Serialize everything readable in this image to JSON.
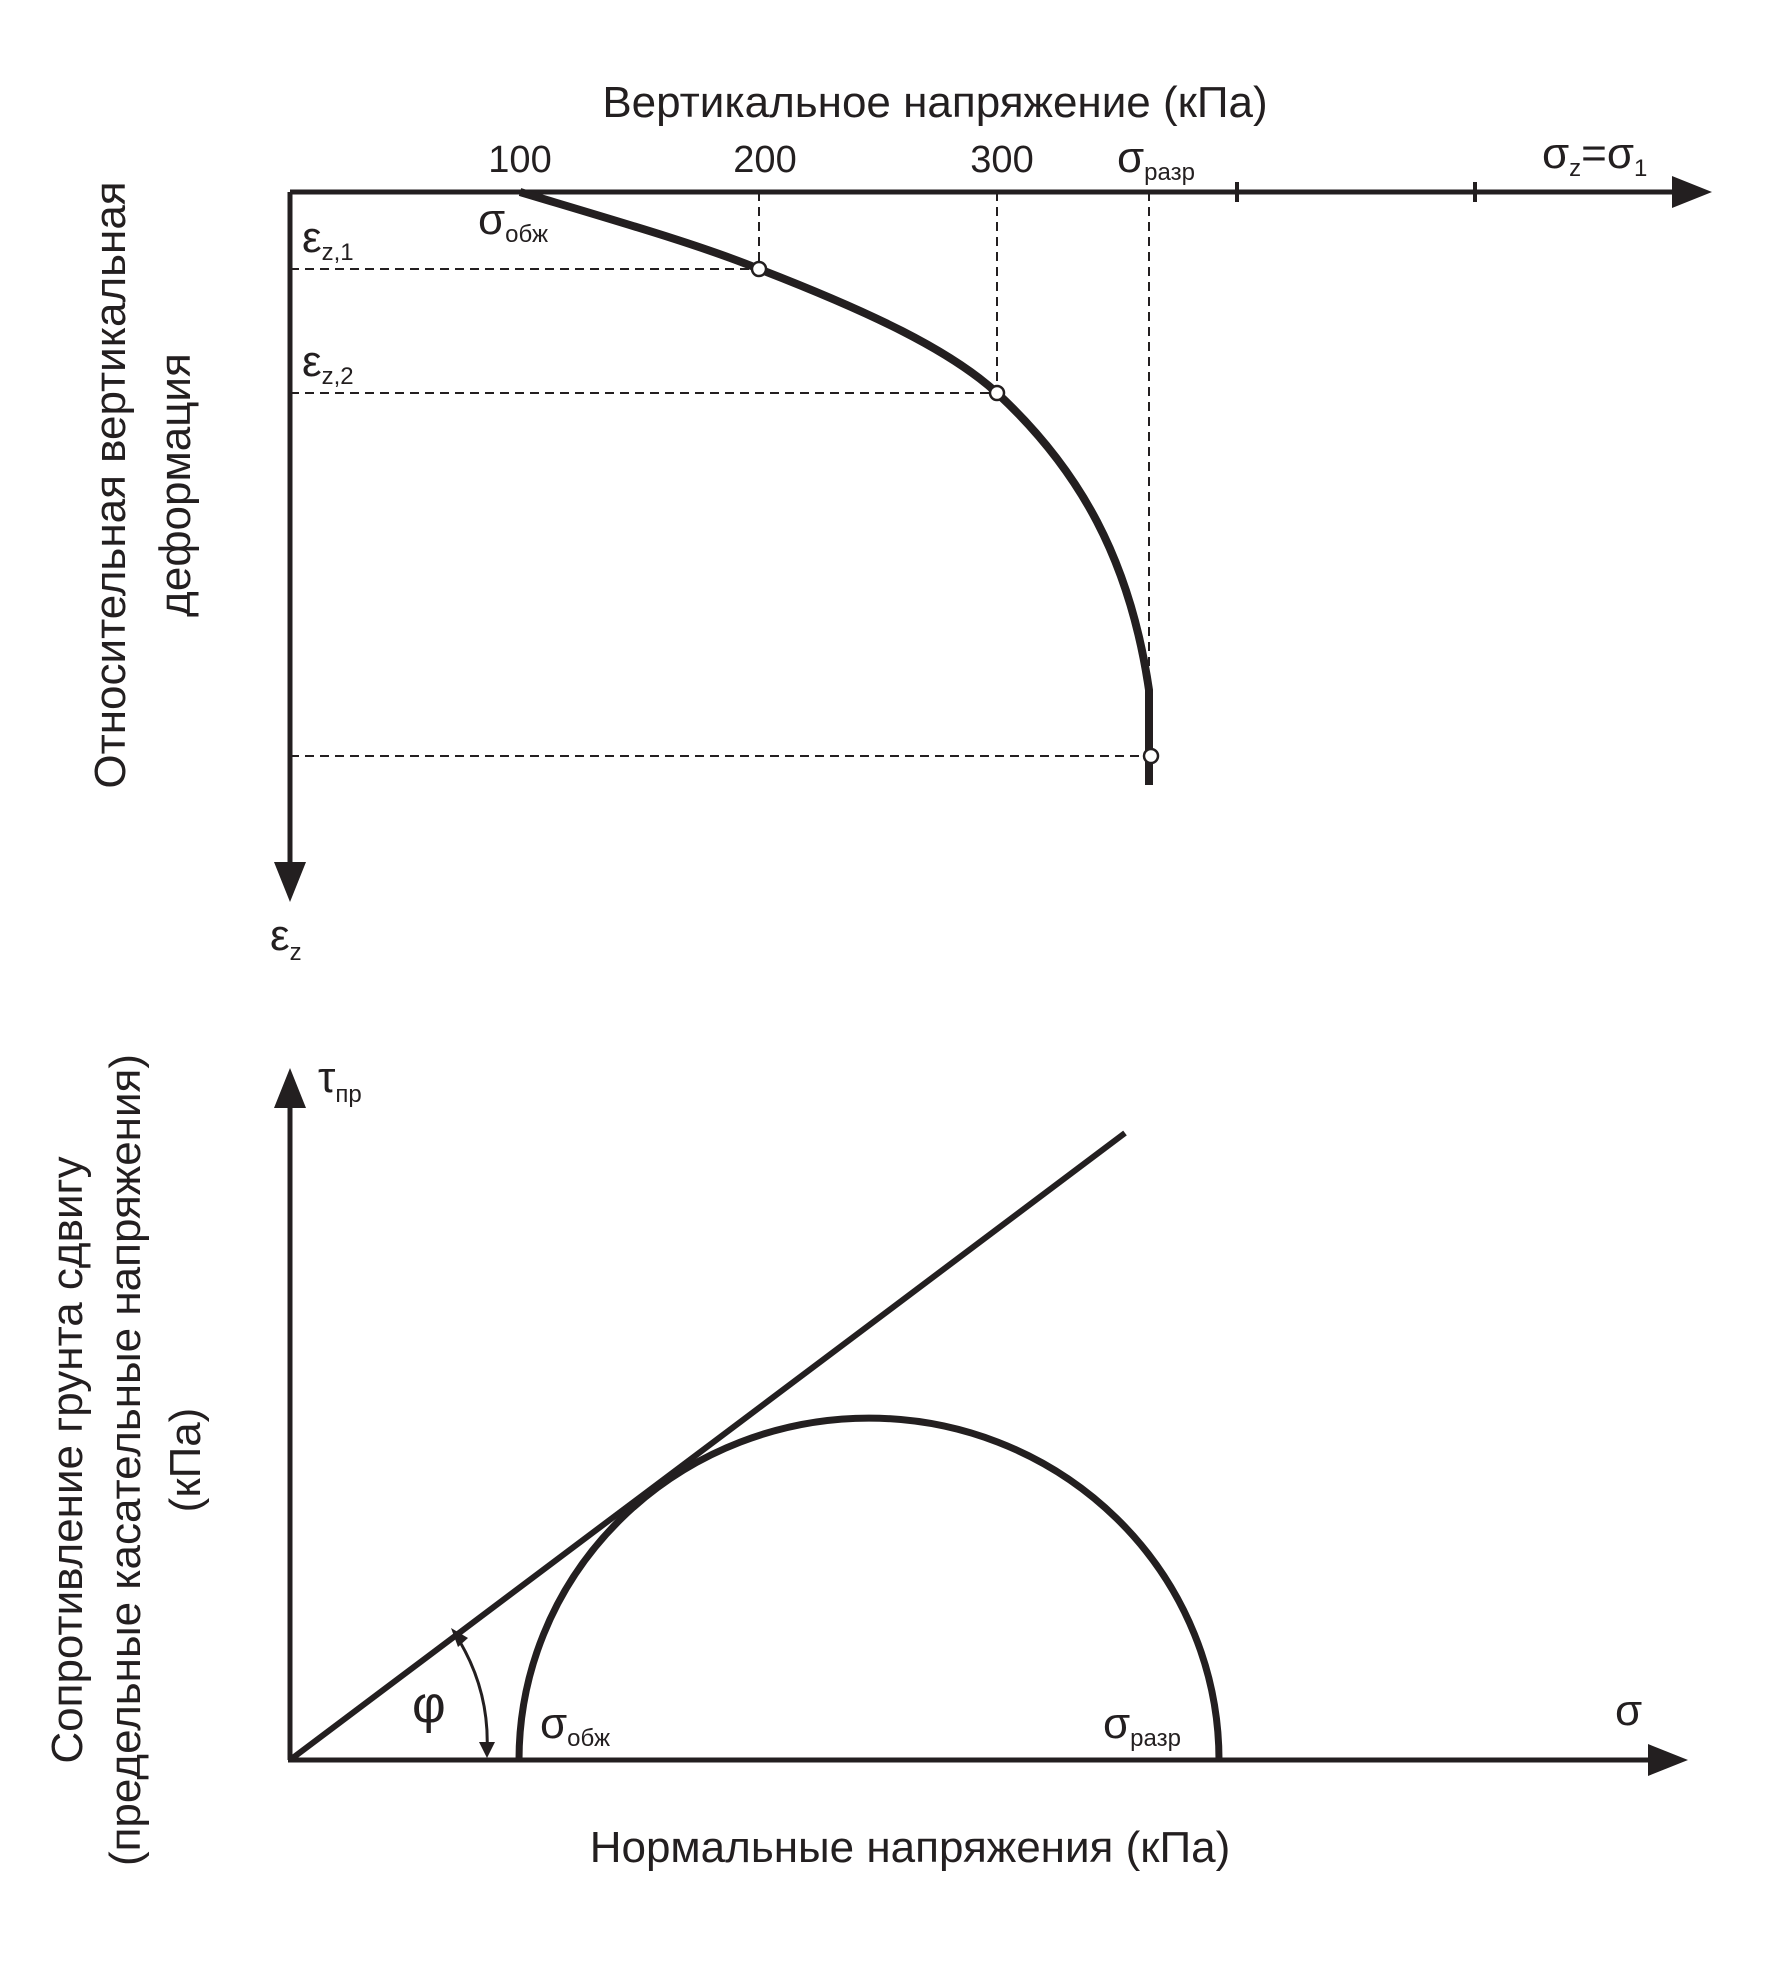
{
  "colors": {
    "ink": "#231f20",
    "background": "#ffffff"
  },
  "top_chart": {
    "x_title": "Вертикальное напряжение (кПа)",
    "y_title_line1": "Относительная вертикальная",
    "y_title_line2": "деформация",
    "x_axis_symbol": "σ",
    "x_axis_symbol_sub": "z",
    "x_axis_equals": "=σ",
    "x_axis_equals_sub": "1",
    "y_axis_symbol": "ε",
    "y_axis_symbol_sub": "z",
    "ticks": [
      "100",
      "200",
      "300"
    ],
    "sigma_razr": "σ",
    "sigma_razr_sub": "разр",
    "sigma_obzh": "σ",
    "sigma_obzh_sub": "обж",
    "eps1": "ε",
    "eps1_sub": "z,1",
    "eps2": "ε",
    "eps2_sub": "z,2"
  },
  "bottom_chart": {
    "x_title": "Нормальные напряжения (кПа)",
    "y_title_line1": "Сопротивление грунта сдвигу",
    "y_title_line2": "(предельные касательные напряжения)",
    "y_title_line3": "(кПа)",
    "tau": "τ",
    "tau_sub": "пр",
    "sigma": "σ",
    "phi": "φ",
    "sigma_obzh": "σ",
    "sigma_obzh_sub": "обж",
    "sigma_razr": "σ",
    "sigma_razr_sub": "разр"
  }
}
